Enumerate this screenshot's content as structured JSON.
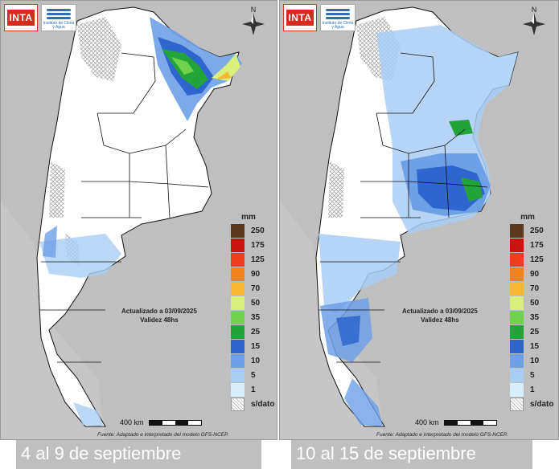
{
  "brand": {
    "inta": "INTA",
    "institute": "Instituto de Clima y Agua"
  },
  "compass_label": "N",
  "legend": {
    "unit": "mm",
    "items": [
      {
        "label": "250",
        "color": "#5a3b1f"
      },
      {
        "label": "175",
        "color": "#c8140f"
      },
      {
        "label": "125",
        "color": "#ee3d1c"
      },
      {
        "label": "90",
        "color": "#f2821b"
      },
      {
        "label": "70",
        "color": "#f7b733"
      },
      {
        "label": "50",
        "color": "#d8f07a"
      },
      {
        "label": "35",
        "color": "#6fd14e"
      },
      {
        "label": "25",
        "color": "#22a43a"
      },
      {
        "label": "15",
        "color": "#2f65cf"
      },
      {
        "label": "10",
        "color": "#6ea0e6"
      },
      {
        "label": "5",
        "color": "#a9cdf3"
      },
      {
        "label": "1",
        "color": "#d9eefb"
      }
    ],
    "nodata_label": "s/dato"
  },
  "panels": [
    {
      "updated": "Actualizado a 03/09/2025",
      "validity": "Validez 48hs",
      "scale_label": "400 km",
      "source": "Fuente: Adaptado e interpretado del modelo GFS-NCEP.",
      "caption": "4 al 9 de septiembre"
    },
    {
      "updated": "Actualizado a 03/09/2025",
      "validity": "Validez 48hs",
      "scale_label": "400 km",
      "source": "Fuente: Adaptado e interpretado del modelo GFS-NCEP.",
      "caption": "10 al 15 de septiembre"
    }
  ]
}
